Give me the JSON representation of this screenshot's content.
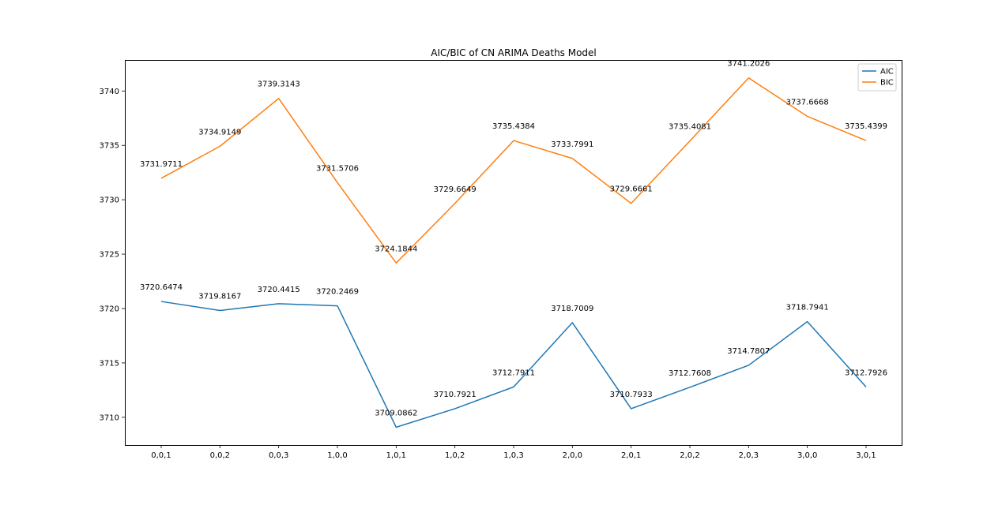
{
  "chart_data": {
    "type": "line",
    "title": "AIC/BIC of CN ARIMA Deaths Model",
    "xlabel": "",
    "ylabel": "",
    "categories": [
      "0,0,1",
      "0,0,2",
      "0,0,3",
      "1,0,0",
      "1,0,1",
      "1,0,2",
      "1,0,3",
      "2,0,0",
      "2,0,1",
      "2,0,2",
      "2,0,3",
      "3,0,0",
      "3,0,1"
    ],
    "yticks": [
      3710,
      3715,
      3720,
      3725,
      3730,
      3735,
      3740
    ],
    "ylim": [
      3707.45,
      3742.85
    ],
    "grid": false,
    "legend_position": "top-right",
    "series": [
      {
        "name": "AIC",
        "color": "#1f77b4",
        "values": [
          3720.6474,
          3719.8167,
          3720.4415,
          3720.2469,
          3709.0862,
          3710.7921,
          3712.7911,
          3718.7009,
          3710.7933,
          3712.7608,
          3714.7807,
          3718.7941,
          3712.7926
        ],
        "labels": [
          "3720.6474",
          "3719.8167",
          "3720.4415",
          "3720.2469",
          "3709.0862",
          "3710.7921",
          "3712.7911",
          "3718.7009",
          "3710.7933",
          "3712.7608",
          "3714.7807",
          "3718.7941",
          "3712.7926"
        ]
      },
      {
        "name": "BIC",
        "color": "#ff7f0e",
        "values": [
          3731.9711,
          3734.9149,
          3739.3143,
          3731.5706,
          3724.1844,
          3729.6649,
          3735.4384,
          3733.7991,
          3729.6661,
          3735.4081,
          3741.2026,
          3737.6668,
          3735.4399
        ],
        "labels": [
          "3731.9711",
          "3734.9149",
          "3739.3143",
          "3731.5706",
          "3724.1844",
          "3729.6649",
          "3735.4384",
          "3733.7991",
          "3729.6661",
          "3735.4081",
          "3741.2026",
          "3737.6668",
          "3735.4399"
        ]
      }
    ]
  }
}
